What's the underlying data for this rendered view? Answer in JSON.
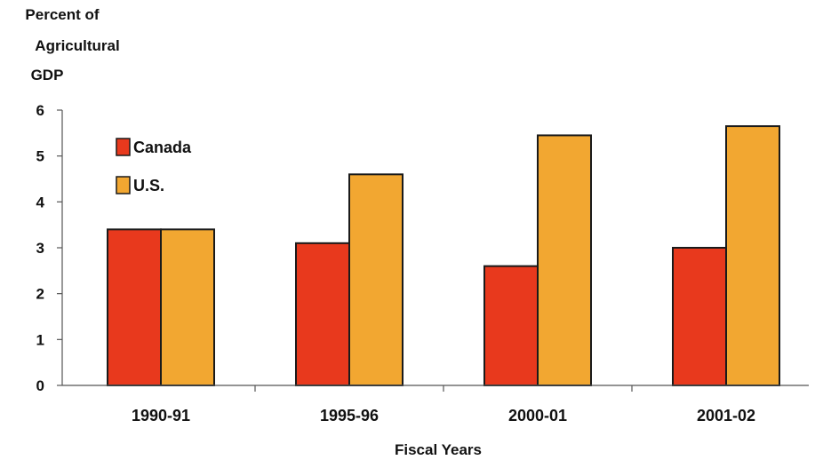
{
  "chart_data": {
    "type": "bar",
    "ylabel_lines": [
      "Percent of",
      "Agricultural",
      "GDP"
    ],
    "xlabel": "Fiscal Years",
    "categories": [
      "1990-91",
      "1995-96",
      "2000-01",
      "2001-02"
    ],
    "ylim": [
      0,
      6
    ],
    "yticks": [
      "0",
      "1",
      "2",
      "3",
      "4",
      "5",
      "6"
    ],
    "legend_position": "top-left",
    "grid": false,
    "series": [
      {
        "name": "Canada",
        "color": "#e8391d",
        "values": [
          3.4,
          3.1,
          2.6,
          3.0
        ]
      },
      {
        "name": "U.S.",
        "color": "#f2a731",
        "values": [
          3.4,
          4.6,
          5.45,
          5.65
        ]
      }
    ]
  }
}
